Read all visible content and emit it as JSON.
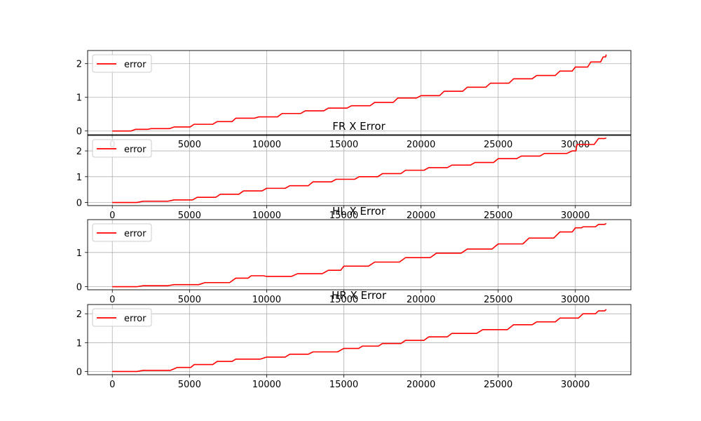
{
  "colors": {
    "series": "#ff0000",
    "grid": "#b0b0b0",
    "axis": "#000000",
    "background": "#ffffff"
  },
  "chart_data": [
    {
      "type": "line",
      "title": "",
      "xlabel": "",
      "ylabel": "",
      "xlim": [
        -1600,
        33600
      ],
      "ylim": [
        -0.11,
        2.39
      ],
      "xticks": [
        0,
        5000,
        10000,
        15000,
        20000,
        25000,
        30000
      ],
      "yticks": [
        0,
        1,
        2
      ],
      "grid": true,
      "legend_position": "upper-left",
      "series": [
        {
          "name": "error",
          "color": "#ff0000",
          "x": [
            0,
            1500,
            2500,
            4000,
            5300,
            6800,
            8000,
            9500,
            11000,
            12500,
            14000,
            15500,
            17000,
            18500,
            20000,
            21500,
            23000,
            24500,
            26000,
            27500,
            29000,
            30000,
            31000,
            31800,
            32000
          ],
          "y": [
            0.0,
            0.05,
            0.07,
            0.12,
            0.2,
            0.28,
            0.38,
            0.42,
            0.52,
            0.6,
            0.68,
            0.75,
            0.85,
            0.98,
            1.05,
            1.18,
            1.3,
            1.42,
            1.55,
            1.65,
            1.78,
            1.9,
            2.05,
            2.2,
            2.27
          ]
        }
      ]
    },
    {
      "type": "line",
      "title": "FR X Error",
      "xlabel": "",
      "ylabel": "",
      "xlim": [
        -1600,
        33600
      ],
      "ylim": [
        -0.12,
        2.6
      ],
      "xticks": [
        0,
        5000,
        10000,
        15000,
        20000,
        25000,
        30000
      ],
      "yticks": [
        0,
        1,
        2
      ],
      "grid": true,
      "legend_position": "upper-left",
      "series": [
        {
          "name": "error",
          "color": "#ff0000",
          "x": [
            0,
            2000,
            4000,
            5500,
            7000,
            8500,
            10000,
            11500,
            13000,
            14500,
            16000,
            17500,
            19000,
            20500,
            22000,
            23500,
            25000,
            26500,
            28000,
            29800,
            30100,
            31500,
            32000
          ],
          "y": [
            0.0,
            0.05,
            0.1,
            0.2,
            0.32,
            0.45,
            0.55,
            0.65,
            0.8,
            0.9,
            1.0,
            1.12,
            1.25,
            1.35,
            1.45,
            1.55,
            1.7,
            1.8,
            1.9,
            2.0,
            2.25,
            2.48,
            2.5
          ]
        }
      ]
    },
    {
      "type": "line",
      "title": "HL X Error",
      "xlabel": "",
      "ylabel": "",
      "xlim": [
        -1600,
        33600
      ],
      "ylim": [
        -0.09,
        1.96
      ],
      "xticks": [
        0,
        5000,
        10000,
        15000,
        20000,
        25000,
        30000
      ],
      "yticks": [
        0,
        1
      ],
      "grid": true,
      "legend_position": "upper-left",
      "series": [
        {
          "name": "error",
          "color": "#ff0000",
          "x": [
            0,
            2000,
            4000,
            6000,
            8000,
            9000,
            10000,
            12000,
            14000,
            15000,
            17000,
            19000,
            21000,
            23000,
            25000,
            27000,
            29000,
            30000,
            30500,
            31500,
            32000
          ],
          "y": [
            0.0,
            0.03,
            0.06,
            0.12,
            0.25,
            0.32,
            0.3,
            0.38,
            0.48,
            0.6,
            0.72,
            0.85,
            0.98,
            1.1,
            1.25,
            1.42,
            1.6,
            1.72,
            1.75,
            1.82,
            1.85
          ]
        }
      ]
    },
    {
      "type": "line",
      "title": "HR X Error",
      "xlabel": "",
      "ylabel": "",
      "xlim": [
        -1600,
        33600
      ],
      "ylim": [
        -0.11,
        2.32
      ],
      "xticks": [
        0,
        5000,
        10000,
        15000,
        20000,
        25000,
        30000
      ],
      "yticks": [
        0,
        1,
        2
      ],
      "grid": true,
      "legend_position": "upper-left",
      "series": [
        {
          "name": "error",
          "color": "#ff0000",
          "x": [
            0,
            2000,
            4200,
            5300,
            6800,
            8000,
            10000,
            11500,
            13000,
            15000,
            16200,
            17500,
            19000,
            20500,
            22000,
            24000,
            26000,
            27500,
            29000,
            30500,
            31500,
            32000
          ],
          "y": [
            0.0,
            0.04,
            0.14,
            0.24,
            0.35,
            0.43,
            0.5,
            0.6,
            0.68,
            0.8,
            0.88,
            0.97,
            1.08,
            1.2,
            1.32,
            1.45,
            1.62,
            1.72,
            1.85,
            2.0,
            2.1,
            2.15
          ]
        }
      ]
    }
  ]
}
